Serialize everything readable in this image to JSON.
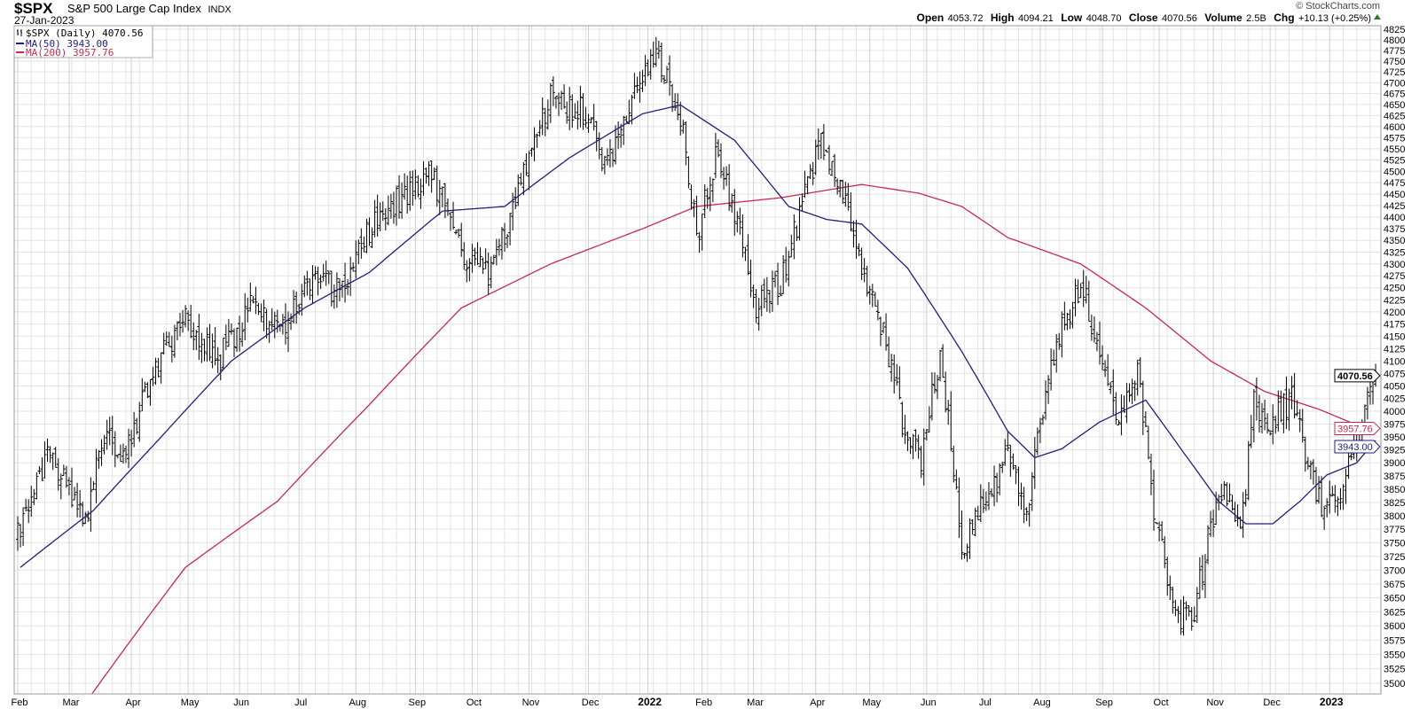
{
  "header": {
    "symbol": "$SPX",
    "name": "S&P 500 Large Cap Index",
    "exchange": "INDX",
    "date": "27-Jan-2023",
    "copyright": "© StockCharts.com"
  },
  "ohlc": {
    "open_label": "Open",
    "open": "4053.72",
    "high_label": "High",
    "high": "4094.21",
    "low_label": "Low",
    "low": "4048.70",
    "close_label": "Close",
    "close": "4070.56",
    "volume_label": "Volume",
    "volume": "2.5B",
    "chg_label": "Chg",
    "chg": "+10.13 (+0.25%)",
    "chg_icon": "up-triangle-icon"
  },
  "legend": {
    "price": "$SPX (Daily) 4070.56",
    "ma50": "MA(50) 3943.00",
    "ma200": "MA(200) 3957.76"
  },
  "tags": {
    "close": "4070.56",
    "ma200": "3957.76",
    "ma50": "3943.00"
  },
  "colors": {
    "bars": "#000000",
    "ma50": "#1f1f7a",
    "ma200": "#c9284e",
    "grid": "#e3e3e3",
    "grid_major": "#cfcfcf"
  },
  "chart_data": {
    "type": "line",
    "title": "$SPX S&P 500 Large Cap Index INDX",
    "subtitle": "27-Jan-2023",
    "style": "ohlc-bars",
    "y_scale": "log",
    "ylim": [
      3500,
      4825
    ],
    "y_ticks": [
      4825,
      4800,
      4775,
      4750,
      4725,
      4700,
      4675,
      4650,
      4625,
      4600,
      4575,
      4550,
      4525,
      4500,
      4475,
      4450,
      4425,
      4400,
      4375,
      4350,
      4325,
      4300,
      4275,
      4250,
      4225,
      4200,
      4175,
      4150,
      4125,
      4100,
      4075,
      4050,
      4025,
      4000,
      3975,
      3950,
      3925,
      3900,
      3875,
      3850,
      3825,
      3800,
      3775,
      3750,
      3725,
      3700,
      3675,
      3650,
      3625,
      3600,
      3575,
      3550,
      3525,
      3500
    ],
    "y_ticks_hidden": [
      4075,
      3950
    ],
    "x_unit": "trading day index from 1-Feb-2021",
    "x_range": [
      0,
      502
    ],
    "x_ticks": [
      {
        "label": "Feb",
        "day": 0
      },
      {
        "label": "Mar",
        "day": 19
      },
      {
        "label": "Apr",
        "day": 42
      },
      {
        "label": "May",
        "day": 63
      },
      {
        "label": "Jun",
        "day": 82
      },
      {
        "label": "Jul",
        "day": 104
      },
      {
        "label": "Aug",
        "day": 125
      },
      {
        "label": "Sep",
        "day": 147
      },
      {
        "label": "Oct",
        "day": 168
      },
      {
        "label": "Nov",
        "day": 189
      },
      {
        "label": "Dec",
        "day": 211
      },
      {
        "label": "2022",
        "day": 233,
        "year": true
      },
      {
        "label": "Feb",
        "day": 253
      },
      {
        "label": "Mar",
        "day": 272
      },
      {
        "label": "Apr",
        "day": 295
      },
      {
        "label": "May",
        "day": 315
      },
      {
        "label": "Jun",
        "day": 336
      },
      {
        "label": "Jul",
        "day": 357
      },
      {
        "label": "Aug",
        "day": 378
      },
      {
        "label": "Sep",
        "day": 401
      },
      {
        "label": "Oct",
        "day": 422
      },
      {
        "label": "Nov",
        "day": 442
      },
      {
        "label": "Dec",
        "day": 463
      },
      {
        "label": "2023",
        "day": 485,
        "year": true
      }
    ],
    "legend_position": "top-left",
    "grid": true,
    "series": [
      {
        "name": "$SPX (Daily)",
        "kind": "close",
        "points": [
          [
            1,
            3761
          ],
          [
            11,
            3927
          ],
          [
            25,
            3777
          ],
          [
            32,
            3961
          ],
          [
            40,
            3910
          ],
          [
            49,
            4066
          ],
          [
            62,
            4190
          ],
          [
            74,
            4100
          ],
          [
            86,
            4208
          ],
          [
            99,
            4172
          ],
          [
            106,
            4263
          ],
          [
            120,
            4245
          ],
          [
            130,
            4375
          ],
          [
            143,
            4452
          ],
          [
            153,
            4500
          ],
          [
            164,
            4319
          ],
          [
            174,
            4282
          ],
          [
            184,
            4433
          ],
          [
            197,
            4669
          ],
          [
            211,
            4629
          ],
          [
            216,
            4491
          ],
          [
            228,
            4669
          ],
          [
            236,
            4771
          ],
          [
            245,
            4629
          ],
          [
            251,
            4356
          ],
          [
            258,
            4530
          ],
          [
            265,
            4413
          ],
          [
            273,
            4208
          ],
          [
            282,
            4263
          ],
          [
            297,
            4569
          ],
          [
            305,
            4452
          ],
          [
            314,
            4263
          ],
          [
            321,
            4137
          ],
          [
            327,
            3979
          ],
          [
            334,
            3910
          ],
          [
            341,
            4119
          ],
          [
            349,
            3745
          ],
          [
            356,
            3810
          ],
          [
            366,
            3910
          ],
          [
            373,
            3810
          ],
          [
            383,
            4119
          ],
          [
            393,
            4263
          ],
          [
            400,
            4119
          ],
          [
            407,
            3979
          ],
          [
            414,
            4083
          ],
          [
            420,
            3810
          ],
          [
            427,
            3633
          ],
          [
            434,
            3602
          ],
          [
            441,
            3777
          ],
          [
            447,
            3843
          ],
          [
            452,
            3761
          ],
          [
            457,
            4013
          ],
          [
            464,
            3979
          ],
          [
            471,
            4030
          ],
          [
            478,
            3877
          ],
          [
            483,
            3810
          ],
          [
            488,
            3827
          ],
          [
            495,
            3944
          ],
          [
            502,
            4070.56
          ]
        ],
        "last_bar": {
          "open": 4053.72,
          "high": 4094.21,
          "low": 4048.7,
          "close": 4070.56
        }
      },
      {
        "name": "MA(50)",
        "kind": "ma",
        "points": [
          [
            1,
            3705
          ],
          [
            28,
            3810
          ],
          [
            52,
            3944
          ],
          [
            79,
            4100
          ],
          [
            106,
            4208
          ],
          [
            130,
            4282
          ],
          [
            157,
            4413
          ],
          [
            180,
            4423
          ],
          [
            204,
            4530
          ],
          [
            231,
            4629
          ],
          [
            245,
            4649
          ],
          [
            265,
            4569
          ],
          [
            285,
            4423
          ],
          [
            299,
            4395
          ],
          [
            312,
            4385
          ],
          [
            329,
            4291
          ],
          [
            349,
            4119
          ],
          [
            366,
            3961
          ],
          [
            376,
            3910
          ],
          [
            386,
            3927
          ],
          [
            400,
            3979
          ],
          [
            417,
            4022
          ],
          [
            430,
            3927
          ],
          [
            444,
            3827
          ],
          [
            454,
            3785
          ],
          [
            464,
            3785
          ],
          [
            474,
            3827
          ],
          [
            484,
            3877
          ],
          [
            495,
            3900
          ],
          [
            502,
            3943.0
          ]
        ]
      },
      {
        "name": "MA(200)",
        "kind": "ma",
        "points": [
          [
            27,
            3479
          ],
          [
            62,
            3705
          ],
          [
            96,
            3827
          ],
          [
            130,
            4013
          ],
          [
            164,
            4208
          ],
          [
            197,
            4300
          ],
          [
            231,
            4375
          ],
          [
            251,
            4423
          ],
          [
            282,
            4442
          ],
          [
            312,
            4471
          ],
          [
            333,
            4452
          ],
          [
            349,
            4423
          ],
          [
            366,
            4356
          ],
          [
            393,
            4300
          ],
          [
            417,
            4208
          ],
          [
            441,
            4100
          ],
          [
            461,
            4039
          ],
          [
            481,
            4004
          ],
          [
            502,
            3957.76
          ]
        ]
      }
    ]
  }
}
